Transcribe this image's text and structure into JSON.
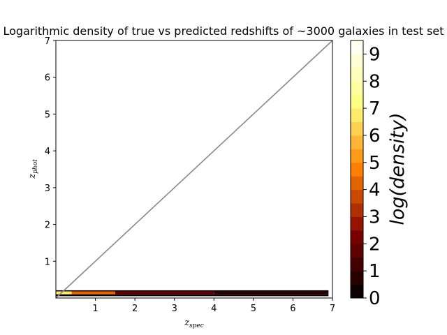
{
  "chart_data": {
    "type": "heatmap",
    "title": "Logarithmic density of true vs predicted redshifts of ~3000 galaxies in test set",
    "xlabel": {
      "base": "z",
      "sub": "spec"
    },
    "ylabel": {
      "base": "z",
      "sub": "phot"
    },
    "xlim": [
      0,
      7
    ],
    "ylim": [
      0,
      7
    ],
    "xticks": [
      "1",
      "2",
      "3",
      "4",
      "5",
      "6",
      "7"
    ],
    "yticks": [
      "1",
      "2",
      "3",
      "4",
      "5",
      "6",
      "7"
    ],
    "reference_line": {
      "x": [
        0,
        7
      ],
      "y": [
        0,
        7
      ],
      "color": "#888888"
    },
    "colorbar": {
      "label": "log(density)",
      "range": [
        0,
        9.5
      ],
      "levels": 19,
      "ticks": [
        "0",
        "1",
        "2",
        "3",
        "4",
        "5",
        "6",
        "7",
        "8",
        "9"
      ],
      "colormap": "afmhot"
    },
    "density_bands": [
      {
        "x": [
          0.0,
          0.4
        ],
        "y": [
          0.1,
          0.18
        ],
        "log_density": 6.5
      },
      {
        "x": [
          0.4,
          1.5
        ],
        "y": [
          0.1,
          0.18
        ],
        "log_density": 4.0
      },
      {
        "x": [
          1.5,
          4.0
        ],
        "y": [
          0.1,
          0.18
        ],
        "log_density": 1.5
      },
      {
        "x": [
          4.0,
          6.9
        ],
        "y": [
          0.1,
          0.18
        ],
        "log_density": 0.8
      },
      {
        "x": [
          0.0,
          6.9
        ],
        "y": [
          0.05,
          0.1
        ],
        "log_density": 0.3
      },
      {
        "x": [
          0.0,
          6.9
        ],
        "y": [
          0.18,
          0.21
        ],
        "log_density": 0.4
      }
    ]
  }
}
